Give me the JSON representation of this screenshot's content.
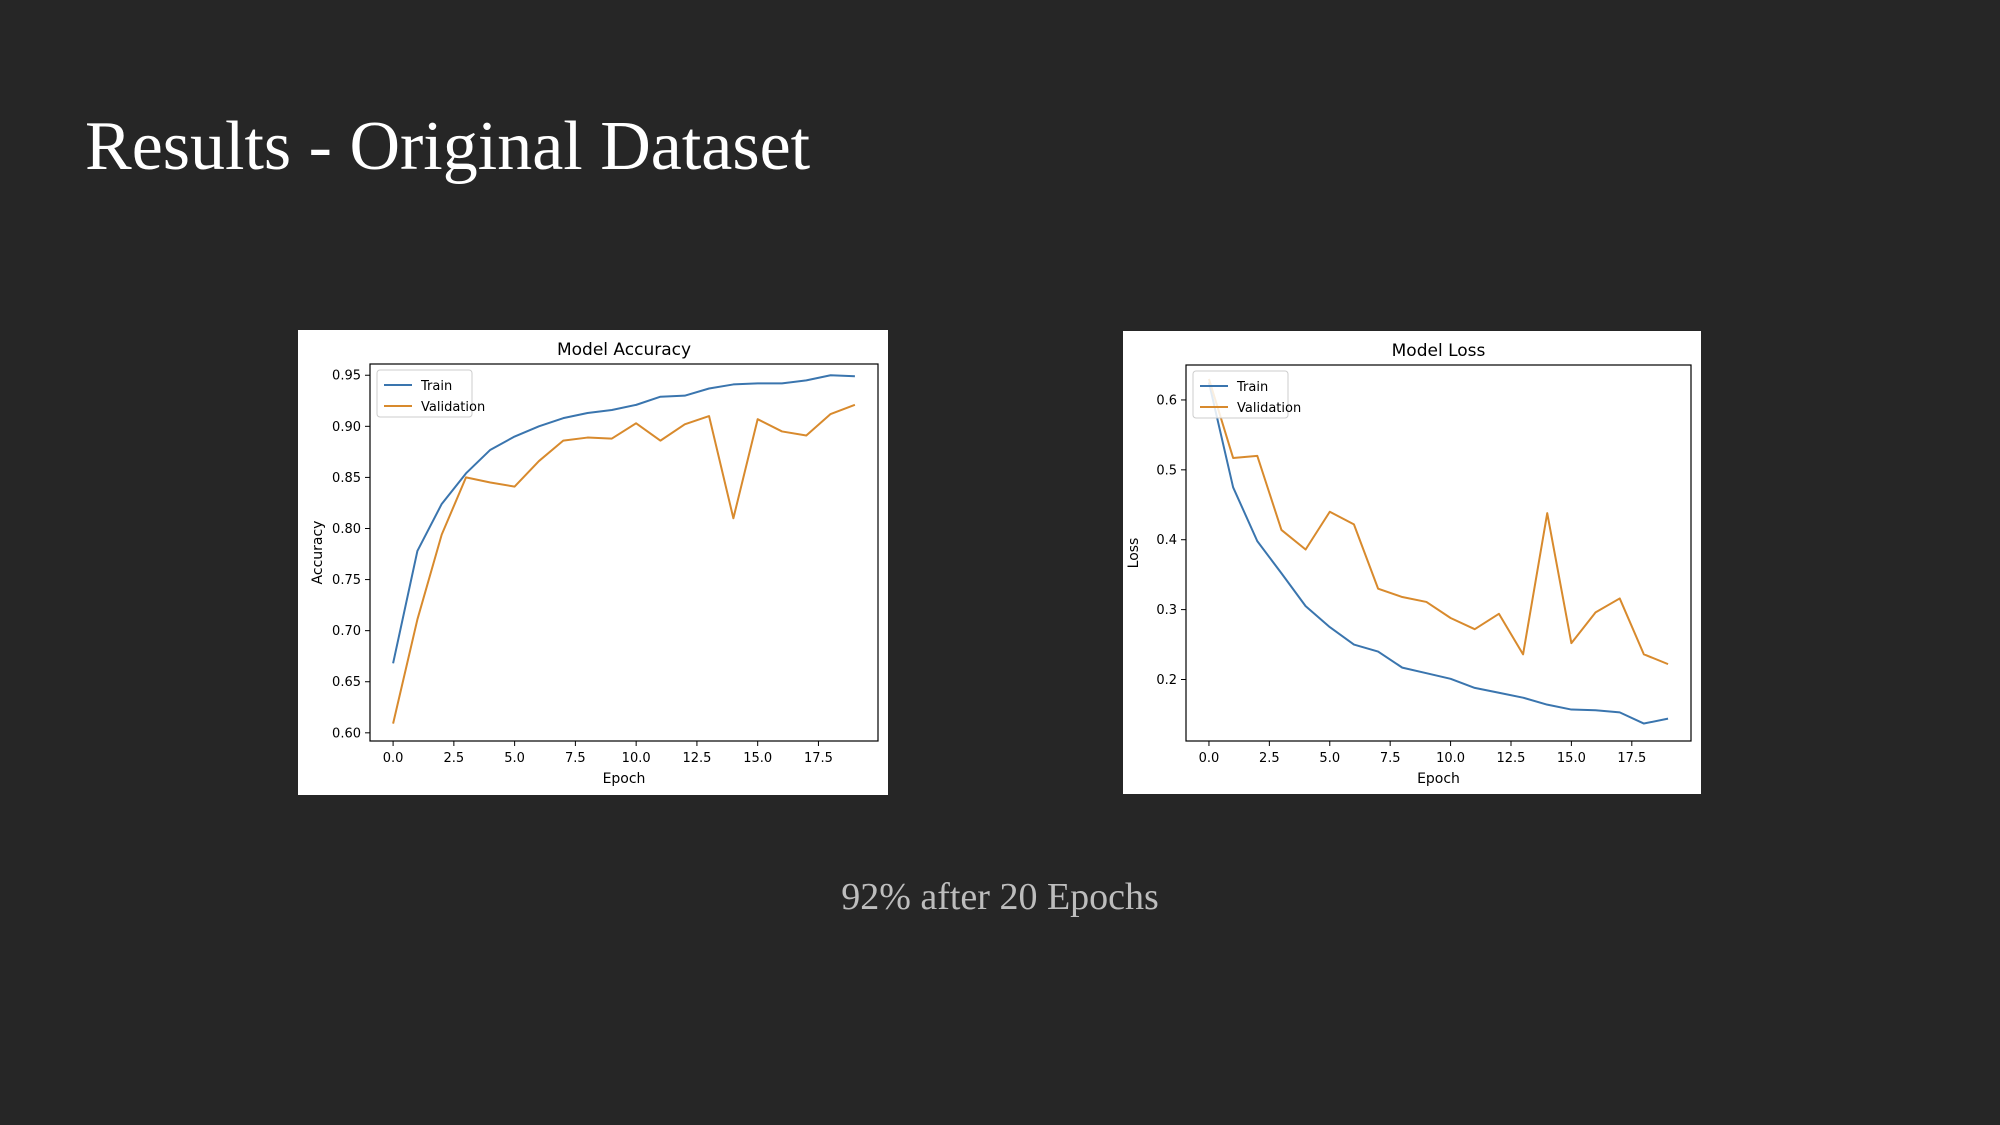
{
  "slide": {
    "title": "Results - Original Dataset",
    "caption": "92% after 20 Epochs"
  },
  "colors": {
    "background": "#262626",
    "train": "#3a75ae",
    "validation": "#d88a2d"
  },
  "chart_data": [
    {
      "type": "line",
      "title": "Model Accuracy",
      "xlabel": "Epoch",
      "ylabel": "Accuracy",
      "xlim": [
        -0.95,
        19.95
      ],
      "ylim": [
        0.592,
        0.961
      ],
      "xticks": [
        0.0,
        2.5,
        5.0,
        7.5,
        10.0,
        12.5,
        15.0,
        17.5
      ],
      "xtick_labels": [
        "0.0",
        "2.5",
        "5.0",
        "7.5",
        "10.0",
        "12.5",
        "15.0",
        "17.5"
      ],
      "yticks": [
        0.6,
        0.65,
        0.7,
        0.75,
        0.8,
        0.85,
        0.9,
        0.95
      ],
      "ytick_labels": [
        "0.60",
        "0.65",
        "0.70",
        "0.75",
        "0.80",
        "0.85",
        "0.90",
        "0.95"
      ],
      "grid": false,
      "legend": "upper left",
      "x": [
        0,
        1,
        2,
        3,
        4,
        5,
        6,
        7,
        8,
        9,
        10,
        11,
        12,
        13,
        14,
        15,
        16,
        17,
        18,
        19
      ],
      "series": [
        {
          "name": "Train",
          "color": "#3a75ae",
          "values": [
            0.668,
            0.778,
            0.824,
            0.854,
            0.877,
            0.89,
            0.9,
            0.908,
            0.913,
            0.916,
            0.921,
            0.929,
            0.93,
            0.937,
            0.941,
            0.942,
            0.942,
            0.945,
            0.95,
            0.949
          ]
        },
        {
          "name": "Validation",
          "color": "#d88a2d",
          "values": [
            0.609,
            0.711,
            0.794,
            0.85,
            0.845,
            0.841,
            0.866,
            0.886,
            0.889,
            0.888,
            0.903,
            0.886,
            0.902,
            0.91,
            0.81,
            0.907,
            0.895,
            0.891,
            0.912,
            0.921
          ]
        }
      ]
    },
    {
      "type": "line",
      "title": "Model Loss",
      "xlabel": "Epoch",
      "ylabel": "Loss",
      "xlim": [
        -0.95,
        19.95
      ],
      "ylim": [
        0.112,
        0.65
      ],
      "xticks": [
        0.0,
        2.5,
        5.0,
        7.5,
        10.0,
        12.5,
        15.0,
        17.5
      ],
      "xtick_labels": [
        "0.0",
        "2.5",
        "5.0",
        "7.5",
        "10.0",
        "12.5",
        "15.0",
        "17.5"
      ],
      "yticks": [
        0.2,
        0.3,
        0.4,
        0.5,
        0.6
      ],
      "ytick_labels": [
        "0.2",
        "0.3",
        "0.4",
        "0.5",
        "0.6"
      ],
      "grid": false,
      "legend": "upper left",
      "x": [
        0,
        1,
        2,
        3,
        4,
        5,
        6,
        7,
        8,
        9,
        10,
        11,
        12,
        13,
        14,
        15,
        16,
        17,
        18,
        19
      ],
      "series": [
        {
          "name": "Train",
          "color": "#3a75ae",
          "values": [
            0.625,
            0.475,
            0.398,
            0.352,
            0.305,
            0.275,
            0.25,
            0.24,
            0.217,
            0.209,
            0.201,
            0.188,
            0.181,
            0.174,
            0.164,
            0.157,
            0.156,
            0.153,
            0.137,
            0.144
          ]
        },
        {
          "name": "Validation",
          "color": "#d88a2d",
          "values": [
            0.63,
            0.517,
            0.52,
            0.414,
            0.386,
            0.44,
            0.422,
            0.33,
            0.318,
            0.311,
            0.288,
            0.272,
            0.294,
            0.236,
            0.438,
            0.252,
            0.296,
            0.316,
            0.236,
            0.222
          ]
        }
      ]
    }
  ]
}
